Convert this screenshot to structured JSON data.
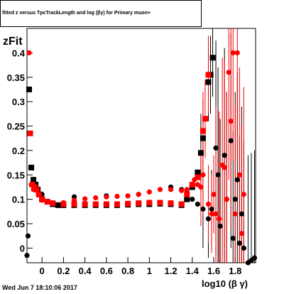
{
  "title": {
    "text": "fitted z versus TpcTrackLength and log (βγ) for Primary muon+"
  },
  "footer": {
    "timestamp": "Wed Jun  7 18:10:06 2017"
  },
  "chart_data": {
    "type": "scatter",
    "xlabel": "log10 (β γ)",
    "ylabel": "zFit",
    "xlim": [
      -0.14,
      1.99
    ],
    "ylim": [
      -0.03,
      0.45
    ],
    "x_ticks": [
      "0",
      "0.2",
      "0.4",
      "0.6",
      "0.8",
      "1",
      "1.2",
      "1.4",
      "1.6",
      "1.8"
    ],
    "y_ticks": [
      "0",
      "0.05",
      "0.1",
      "0.15",
      "0.2",
      "0.25",
      "0.3",
      "0.35",
      "0.4"
    ],
    "colors": {
      "black_series": "#000000",
      "red_series": "#ff0000",
      "axis": "#000000"
    },
    "series": [
      {
        "color": "black",
        "marker": "square",
        "points": [
          [
            -0.12,
            0.325
          ],
          [
            -0.1,
            0.165
          ],
          [
            -0.08,
            0.14
          ],
          [
            -0.06,
            0.13
          ],
          [
            -0.04,
            0.12
          ],
          [
            -0.02,
            0.11
          ],
          [
            0.0,
            0.1
          ],
          [
            0.05,
            0.095
          ],
          [
            0.1,
            0.09
          ],
          [
            0.15,
            0.088
          ],
          [
            0.2,
            0.088
          ],
          [
            0.3,
            0.088
          ],
          [
            0.4,
            0.088
          ],
          [
            0.5,
            0.088
          ],
          [
            0.6,
            0.088
          ],
          [
            0.7,
            0.088
          ],
          [
            0.8,
            0.089
          ],
          [
            0.9,
            0.09
          ],
          [
            1.0,
            0.09
          ],
          [
            1.1,
            0.091
          ],
          [
            1.2,
            0.09
          ],
          [
            1.3,
            0.088
          ],
          [
            1.35,
            0.1
          ],
          [
            1.4,
            0.125
          ],
          [
            1.45,
            0.155
          ],
          [
            1.48,
            0.195
          ],
          [
            1.5,
            0.225
          ],
          [
            1.55,
            0.34
          ],
          [
            1.57,
            0.355
          ],
          [
            1.59,
            0.39
          ]
        ]
      },
      {
        "color": "black",
        "marker": "circle",
        "points": [
          [
            -0.14,
            -0.015
          ],
          [
            -0.13,
            0.025
          ],
          [
            0.0,
            0.11
          ],
          [
            0.3,
            0.105
          ],
          [
            0.6,
            0.107
          ],
          [
            0.9,
            0.11
          ],
          [
            1.2,
            0.125
          ],
          [
            1.3,
            0.12
          ],
          [
            1.35,
            0.115
          ],
          [
            1.4,
            0.1
          ],
          [
            1.45,
            0.09
          ],
          [
            1.5,
            0.08
          ],
          [
            1.55,
            0.06
          ],
          [
            1.58,
            0.08
          ],
          [
            1.62,
            0.205
          ],
          [
            1.64,
            0.15
          ],
          [
            1.66,
            0.045
          ],
          [
            1.7,
            0.19
          ],
          [
            1.72,
            0.1
          ],
          [
            1.76,
            0.22
          ],
          [
            1.78,
            0.02
          ],
          [
            1.8,
            0.1
          ],
          [
            1.82,
            0.14
          ],
          [
            1.84,
            0.01
          ],
          [
            1.86,
            0.07
          ],
          [
            1.88,
            0.0
          ],
          [
            1.92,
            -0.03
          ],
          [
            1.95,
            -0.025
          ],
          [
            1.98,
            -0.02
          ]
        ]
      },
      {
        "color": "red",
        "marker": "square",
        "points": [
          [
            -0.11,
            0.235
          ],
          [
            -0.09,
            0.13
          ],
          [
            -0.07,
            0.125
          ],
          [
            -0.05,
            0.12
          ],
          [
            -0.03,
            0.11
          ],
          [
            0.0,
            0.1
          ],
          [
            0.05,
            0.095
          ],
          [
            0.1,
            0.092
          ],
          [
            0.2,
            0.09
          ],
          [
            0.3,
            0.09
          ],
          [
            0.4,
            0.09
          ],
          [
            0.5,
            0.09
          ],
          [
            0.6,
            0.09
          ],
          [
            0.7,
            0.09
          ],
          [
            0.8,
            0.091
          ],
          [
            0.9,
            0.092
          ],
          [
            1.0,
            0.093
          ],
          [
            1.1,
            0.093
          ],
          [
            1.2,
            0.092
          ],
          [
            1.3,
            0.09
          ],
          [
            1.35,
            0.11
          ],
          [
            1.4,
            0.13
          ],
          [
            1.45,
            0.145
          ],
          [
            1.5,
            0.24
          ],
          [
            1.52,
            0.265
          ],
          [
            1.55,
            0.355
          ]
        ]
      },
      {
        "color": "red",
        "marker": "circle",
        "points": [
          [
            -0.12,
            0.4
          ],
          [
            -0.1,
            0.13
          ],
          [
            -0.08,
            0.12
          ],
          [
            0.0,
            0.098
          ],
          [
            0.1,
            0.092
          ],
          [
            0.2,
            0.093
          ],
          [
            0.3,
            0.098
          ],
          [
            0.4,
            0.101
          ],
          [
            0.5,
            0.103
          ],
          [
            0.6,
            0.105
          ],
          [
            0.7,
            0.106
          ],
          [
            0.8,
            0.107
          ],
          [
            0.9,
            0.11
          ],
          [
            1.0,
            0.115
          ],
          [
            1.1,
            0.12
          ],
          [
            1.2,
            0.12
          ],
          [
            1.3,
            0.118
          ],
          [
            1.35,
            0.12
          ],
          [
            1.4,
            0.13
          ],
          [
            1.42,
            0.14
          ],
          [
            1.45,
            0.13
          ],
          [
            1.48,
            0.125
          ],
          [
            1.5,
            0.15
          ],
          [
            1.55,
            0.09
          ],
          [
            1.58,
            0.07
          ],
          [
            1.6,
            0.11
          ],
          [
            1.62,
            0.07
          ],
          [
            1.65,
            0.06
          ],
          [
            1.68,
            0.17
          ],
          [
            1.7,
            0.165
          ],
          [
            1.72,
            0.1
          ],
          [
            1.74,
            0.36
          ],
          [
            1.76,
            0.26
          ],
          [
            1.78,
            0.4
          ],
          [
            1.8,
            0.07
          ],
          [
            1.82,
            0.4
          ],
          [
            1.84,
            0.15
          ],
          [
            1.86,
            0.03
          ],
          [
            1.88,
            0.11
          ]
        ]
      }
    ]
  }
}
